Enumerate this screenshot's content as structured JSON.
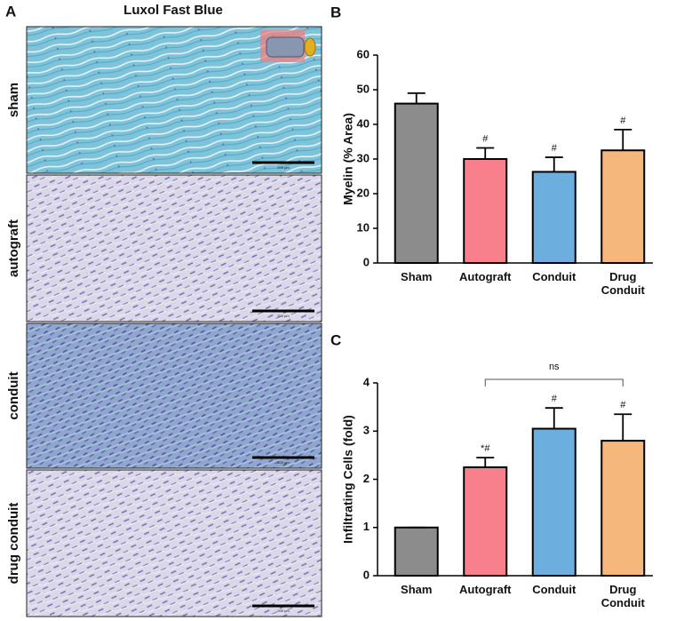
{
  "panel_a": {
    "label": "A",
    "title": "Luxol Fast Blue",
    "rows": [
      "sham",
      "autograft",
      "conduit",
      "drug conduit"
    ],
    "scale_bar": "200 μm"
  },
  "chart_data": [
    {
      "type": "bar",
      "panel_label": "B",
      "y_label": "Myelin (% Area)",
      "categories": [
        "Sham",
        "Autograft",
        "Conduit",
        "Drug Conduit"
      ],
      "values": [
        46,
        30,
        26.3,
        32.5
      ],
      "errors": [
        3,
        3.2,
        4.2,
        6
      ],
      "value_annotations": [
        null,
        "#",
        "#",
        "#"
      ],
      "colors": [
        "#8c8c8c",
        "#f7808c",
        "#6caede",
        "#f6b77c"
      ],
      "ylim": [
        0,
        60
      ],
      "yticks": [
        0,
        10,
        20,
        30,
        40,
        50,
        60
      ]
    },
    {
      "type": "bar",
      "panel_label": "C",
      "y_label": "Infiltrating Cells (fold)",
      "categories": [
        "Sham",
        "Autograft",
        "Conduit",
        "Drug Conduit"
      ],
      "values": [
        1,
        2.25,
        3.05,
        2.8
      ],
      "errors": [
        0,
        0.2,
        0.43,
        0.55
      ],
      "value_annotations": [
        null,
        "*#",
        "#",
        "#"
      ],
      "colors": [
        "#8c8c8c",
        "#f7808c",
        "#6caede",
        "#f6b77c"
      ],
      "bracket": {
        "from": "Autograft",
        "to": "Drug Conduit",
        "label": "ns"
      },
      "ylim": [
        0,
        4
      ],
      "yticks": [
        0,
        1,
        2,
        3,
        4
      ]
    }
  ]
}
